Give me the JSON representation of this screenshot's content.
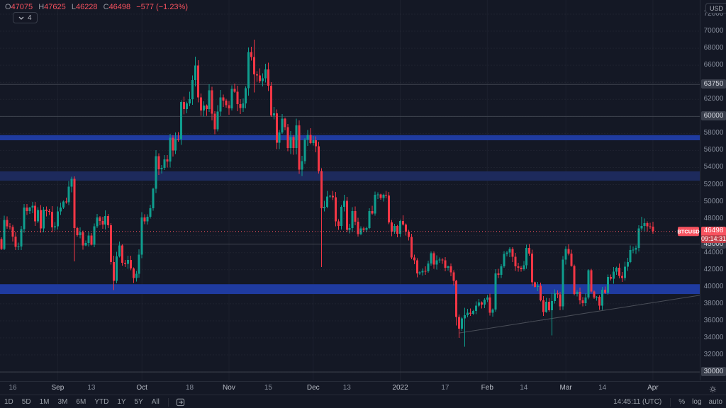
{
  "header": {
    "ohlc": {
      "o_label": "O",
      "o": "47075",
      "h_label": "H",
      "h": "47625",
      "l_label": "L",
      "l": "46228",
      "c_label": "C",
      "c": "46498",
      "change": "−577 (−1.23%)"
    },
    "collapse_count": "4",
    "currency_button": "USD"
  },
  "colors": {
    "background": "#141825",
    "up": "#0f9e8e",
    "down": "#f23645",
    "current_price_red": "#f7525f",
    "zone_strong": "#1f3ba0",
    "zone_soft": "#1d2a5c",
    "drawn_line_gray": "#3e434e",
    "trendline_gray": "#4a4e58"
  },
  "chart_data": {
    "type": "candlestick",
    "symbol": "BTCUSD",
    "interval_days": 1,
    "date_range": "2021-08-12 to 2022-04-01",
    "y_axis": {
      "min": 30000,
      "max": 72000,
      "tick_step": 2000,
      "visible_ticks": [
        72000,
        70000,
        68000,
        66000,
        62000,
        58000,
        56000,
        54000,
        52000,
        50000,
        48000,
        44000,
        42000,
        40000,
        38000,
        36000,
        34000,
        32000
      ]
    },
    "x_axis": {
      "ticks": [
        {
          "label": "16",
          "day": 4,
          "strong": false
        },
        {
          "label": "Sep",
          "day": 20,
          "strong": true
        },
        {
          "label": "13",
          "day": 32,
          "strong": false
        },
        {
          "label": "Oct",
          "day": 50,
          "strong": true
        },
        {
          "label": "18",
          "day": 67,
          "strong": false
        },
        {
          "label": "Nov",
          "day": 81,
          "strong": true
        },
        {
          "label": "15",
          "day": 95,
          "strong": false
        },
        {
          "label": "Dec",
          "day": 111,
          "strong": true
        },
        {
          "label": "13",
          "day": 123,
          "strong": false
        },
        {
          "label": "2022",
          "day": 142,
          "strong": true
        },
        {
          "label": "17",
          "day": 158,
          "strong": false
        },
        {
          "label": "Feb",
          "day": 173,
          "strong": true
        },
        {
          "label": "14",
          "day": 186,
          "strong": false
        },
        {
          "label": "Mar",
          "day": 201,
          "strong": true
        },
        {
          "label": "14",
          "day": 214,
          "strong": false
        },
        {
          "label": "Apr",
          "day": 232,
          "strong": true
        }
      ]
    },
    "series": {
      "open_first": 45600,
      "closes": [
        44420,
        47830,
        47100,
        47020,
        45900,
        44690,
        44710,
        46750,
        49320,
        48870,
        49290,
        49500,
        47680,
        48990,
        46850,
        49070,
        48900,
        48810,
        46990,
        47110,
        48830,
        49290,
        49990,
        49920,
        51750,
        52670,
        46870,
        46060,
        46390,
        44850,
        45160,
        46030,
        44940,
        47100,
        48140,
        47740,
        47290,
        48300,
        47240,
        42900,
        40690,
        43560,
        44860,
        42810,
        42670,
        43160,
        42150,
        41020,
        41540,
        43790,
        48150,
        47660,
        48200,
        49230,
        51490,
        55340,
        53800,
        53950,
        54950,
        54690,
        57480,
        56000,
        57370,
        57340,
        61670,
        60870,
        61530,
        62030,
        64280,
        65990,
        62210,
        60690,
        61290,
        60850,
        63080,
        60330,
        58470,
        60580,
        62250,
        61870,
        61320,
        60950,
        63220,
        62900,
        61440,
        61000,
        61530,
        63290,
        67570,
        66950,
        64950,
        64800,
        64150,
        64460,
        65520,
        63600,
        60100,
        60370,
        56900,
        58100,
        59730,
        58730,
        56280,
        57560,
        56280,
        58960,
        53730,
        54750,
        57270,
        57830,
        56880,
        57180,
        56480,
        53600,
        49200,
        49400,
        50580,
        50670,
        50500,
        47660,
        47130,
        49400,
        50100,
        46700,
        46880,
        48890,
        47650,
        46200,
        46850,
        46700,
        46900,
        48900,
        48600,
        50800,
        50820,
        50430,
        50800,
        50700,
        47550,
        46470,
        47120,
        46210,
        47730,
        47300,
        46460,
        45830,
        43450,
        43100,
        41560,
        41690,
        41860,
        41820,
        42740,
        43950,
        42590,
        43100,
        43180,
        43110,
        42250,
        42380,
        41680,
        40680,
        36460,
        35070,
        36280,
        36660,
        36950,
        36840,
        37160,
        37780,
        38140,
        37920,
        38480,
        38740,
        36940,
        37310,
        41570,
        41380,
        42400,
        43840,
        44040,
        44420,
        43500,
        42400,
        42240,
        42070,
        42540,
        44580,
        43900,
        40520,
        39970,
        40100,
        38390,
        37020,
        38230,
        37250,
        38330,
        39220,
        39120,
        37700,
        43190,
        44420,
        43890,
        42460,
        39140,
        39400,
        38420,
        38060,
        38740,
        41950,
        39440,
        38730,
        38810,
        37790,
        39670,
        39280,
        41140,
        40950,
        41770,
        42230,
        41280,
        41020,
        42370,
        42900,
        44320,
        44340,
        44540,
        46850,
        47150,
        47470,
        47080,
        47075,
        46498
      ],
      "wick_overrides": {
        "26": [
          52950,
          43000
        ],
        "40": [
          43650,
          39600
        ],
        "69": [
          67000,
          63500
        ],
        "90": [
          69000,
          62820
        ],
        "114": [
          53900,
          42330
        ],
        "162": [
          40800,
          35440
        ],
        "163": [
          36750,
          34000
        ],
        "165": [
          37550,
          32950
        ],
        "196": [
          39300,
          34300
        ],
        "228": [
          48230,
          46600
        ],
        "232": [
          47625,
          46228
        ]
      }
    },
    "zones": [
      {
        "top": 57800,
        "bottom": 57200,
        "tone": "strong"
      },
      {
        "top": 53550,
        "bottom": 52450,
        "tone": "soft"
      },
      {
        "top": 40300,
        "bottom": 39150,
        "tone": "strong"
      }
    ],
    "price_lines": [
      {
        "price": 63750,
        "label": "63750"
      },
      {
        "price": 60000,
        "label": "60000"
      },
      {
        "price": 45000,
        "label": "45000"
      },
      {
        "price": 30000,
        "label": "30000"
      }
    ],
    "trendline": {
      "from": {
        "day": 163,
        "price": 34570
      },
      "to": {
        "day": 249,
        "price": 39000
      }
    },
    "current_price": {
      "price": 46498,
      "label": "46498",
      "countdown": "09:14:31",
      "symbol_tag": "BTCUSD"
    }
  },
  "footer": {
    "ranges": [
      "1D",
      "5D",
      "1M",
      "3M",
      "6M",
      "YTD",
      "1Y",
      "5Y",
      "All"
    ],
    "clock": "14:45:11 (UTC)",
    "scale_buttons": [
      "%",
      "log",
      "auto"
    ]
  }
}
